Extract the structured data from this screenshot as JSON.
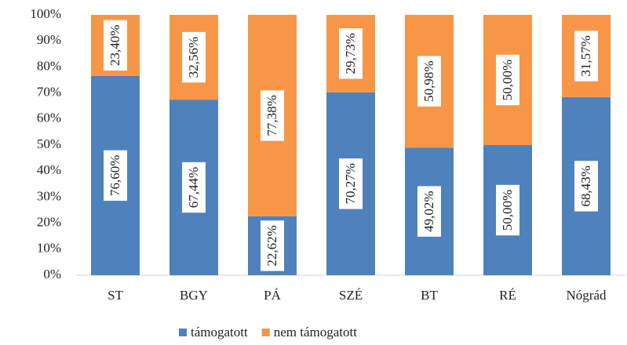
{
  "chart_data": {
    "type": "stacked_bar",
    "categories": [
      "ST",
      "BGY",
      "PÁ",
      "SZÉ",
      "BT",
      "RÉ",
      "Nógrád"
    ],
    "series": [
      {
        "name": "támogatott",
        "color": "#4f81bd",
        "values": [
          76.6,
          67.44,
          22.62,
          70.27,
          49.02,
          50.0,
          68.43
        ],
        "value_labels": [
          "76,60%",
          "67,44%",
          "22,62%",
          "70,27%",
          "49,02%",
          "50,00%",
          "68,43%"
        ]
      },
      {
        "name": "nem támogatott",
        "color": "#f79646",
        "values": [
          23.4,
          32.56,
          77.38,
          29.73,
          50.98,
          50.0,
          31.57
        ],
        "value_labels": [
          "23,40%",
          "32,56%",
          "77,38%",
          "29,73%",
          "50,98%",
          "50,00%",
          "31,57%"
        ]
      }
    ],
    "ylim": [
      0,
      100
    ],
    "yticks": [
      {
        "value": 0,
        "label": "0%"
      },
      {
        "value": 10,
        "label": "10%"
      },
      {
        "value": 20,
        "label": "20%"
      },
      {
        "value": 30,
        "label": "30%"
      },
      {
        "value": 40,
        "label": "40%"
      },
      {
        "value": 50,
        "label": "50%"
      },
      {
        "value": 60,
        "label": "60%"
      },
      {
        "value": 70,
        "label": "70%"
      },
      {
        "value": 80,
        "label": "80%"
      },
      {
        "value": 90,
        "label": "90%"
      },
      {
        "value": 100,
        "label": "100%"
      }
    ],
    "legend": "bottom"
  }
}
